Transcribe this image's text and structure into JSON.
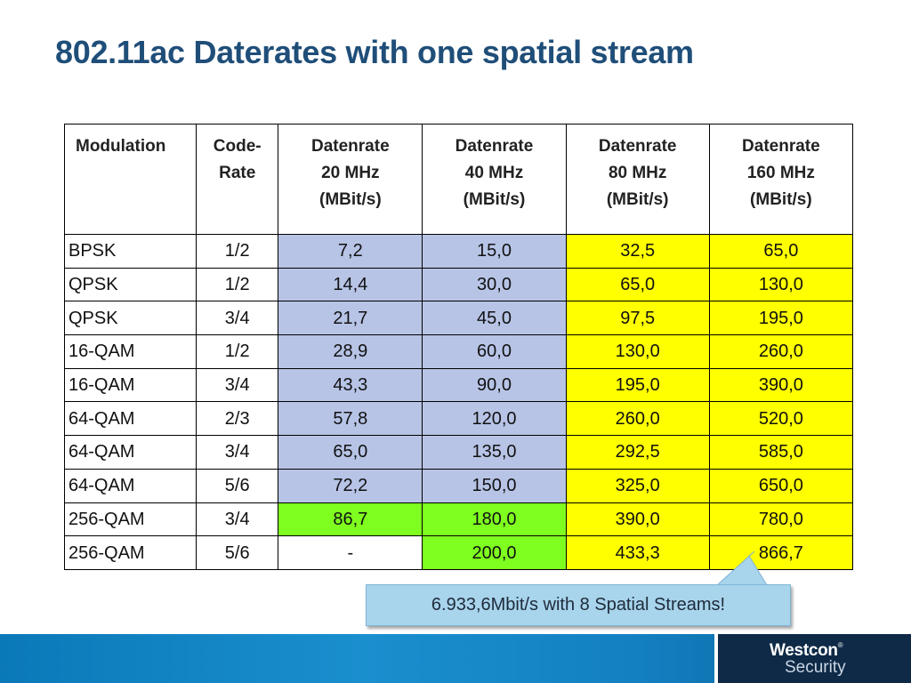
{
  "slide": {
    "title": "802.11ac Daterates with one spatial stream"
  },
  "table": {
    "headers": [
      {
        "lines": [
          "Modulation"
        ]
      },
      {
        "lines": [
          "Code-",
          "Rate"
        ]
      },
      {
        "lines": [
          "Datenrate",
          "20 MHz",
          "(MBit/s)"
        ]
      },
      {
        "lines": [
          "Datenrate",
          "40 MHz",
          "(MBit/s)"
        ]
      },
      {
        "lines": [
          "Datenrate",
          "80 MHz",
          "(MBit/s)"
        ]
      },
      {
        "lines": [
          "Datenrate",
          "160 MHz",
          "(MBit/s)"
        ]
      }
    ],
    "rows": [
      {
        "cells": [
          "BPSK",
          "1/2",
          "7,2",
          "15,0",
          "32,5",
          "65,0"
        ],
        "colors": [
          "white",
          "white",
          "blue",
          "blue",
          "yellow",
          "yellow"
        ]
      },
      {
        "cells": [
          "QPSK",
          "1/2",
          "14,4",
          "30,0",
          "65,0",
          "130,0"
        ],
        "colors": [
          "white",
          "white",
          "blue",
          "blue",
          "yellow",
          "yellow"
        ]
      },
      {
        "cells": [
          "QPSK",
          "3/4",
          "21,7",
          "45,0",
          "97,5",
          "195,0"
        ],
        "colors": [
          "white",
          "white",
          "blue",
          "blue",
          "yellow",
          "yellow"
        ]
      },
      {
        "cells": [
          "16-QAM",
          "1/2",
          "28,9",
          "60,0",
          "130,0",
          "260,0"
        ],
        "colors": [
          "white",
          "white",
          "blue",
          "blue",
          "yellow",
          "yellow"
        ]
      },
      {
        "cells": [
          "16-QAM",
          "3/4",
          "43,3",
          "90,0",
          "195,0",
          "390,0"
        ],
        "colors": [
          "white",
          "white",
          "blue",
          "blue",
          "yellow",
          "yellow"
        ]
      },
      {
        "cells": [
          "64-QAM",
          "2/3",
          "57,8",
          "120,0",
          "260,0",
          "520,0"
        ],
        "colors": [
          "white",
          "white",
          "blue",
          "blue",
          "yellow",
          "yellow"
        ]
      },
      {
        "cells": [
          "64-QAM",
          "3/4",
          "65,0",
          "135,0",
          "292,5",
          "585,0"
        ],
        "colors": [
          "white",
          "white",
          "blue",
          "blue",
          "yellow",
          "yellow"
        ]
      },
      {
        "cells": [
          "64-QAM",
          "5/6",
          "72,2",
          "150,0",
          "325,0",
          "650,0"
        ],
        "colors": [
          "white",
          "white",
          "blue",
          "blue",
          "yellow",
          "yellow"
        ]
      },
      {
        "cells": [
          "256-QAM",
          "3/4",
          "86,7",
          "180,0",
          "390,0",
          "780,0"
        ],
        "colors": [
          "white",
          "white",
          "green",
          "green",
          "yellow",
          "yellow"
        ]
      },
      {
        "cells": [
          "256-QAM",
          "5/6",
          "-",
          "200,0",
          "433,3",
          "866,7"
        ],
        "colors": [
          "white",
          "white",
          "white",
          "green",
          "yellow",
          "yellow"
        ]
      }
    ]
  },
  "callout": {
    "text": "6.933,6Mbit/s with 8 Spatial Streams!"
  },
  "footer": {
    "logo_line1": "Westcon",
    "logo_mark": "®",
    "logo_line2": "Security"
  },
  "colors": {
    "title": "#1f4e79",
    "blue_cell": "#b7c4e6",
    "yellow_cell": "#ffff00",
    "green_cell": "#7fff1f",
    "callout_bg": "#a8d4ec",
    "footer_bar": "#1380c1",
    "footer_logo_bg": "#0e2a47"
  }
}
